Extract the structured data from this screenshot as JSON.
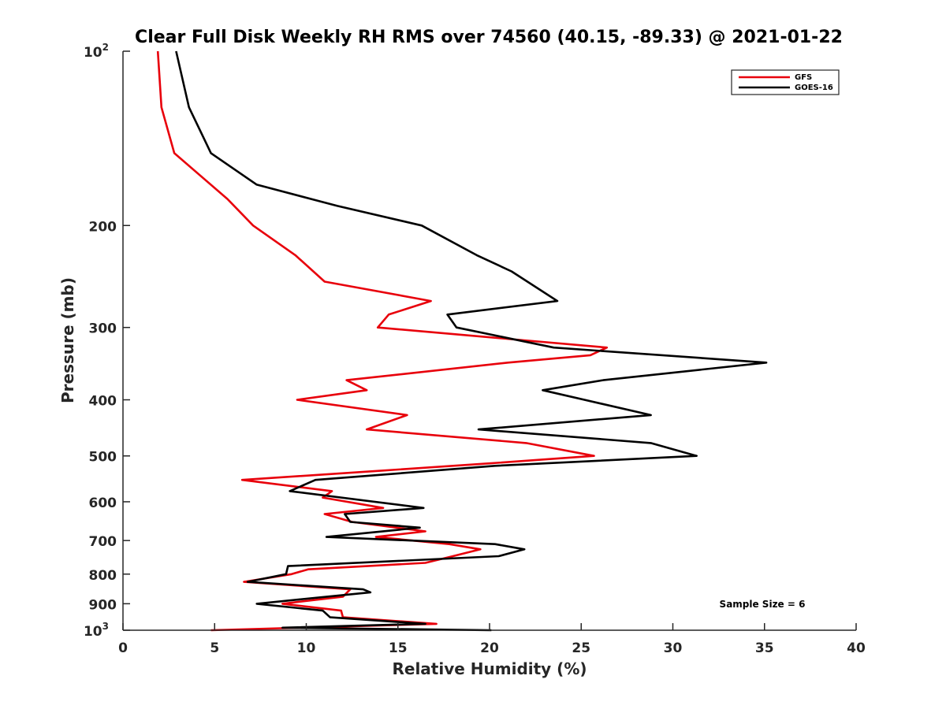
{
  "chart_data": {
    "type": "line",
    "title": "Clear Full Disk Weekly RH RMS over 74560 (40.15, -89.33) @ 2021-01-22",
    "xlabel": "Relative Humidity (%)",
    "ylabel": "Pressure (mb)",
    "xlim": [
      0,
      40
    ],
    "ylim": [
      100,
      1000
    ],
    "y_scale": "log",
    "y_reversed": true,
    "grid": false,
    "x_ticks": [
      {
        "value": 0,
        "label": "0"
      },
      {
        "value": 5,
        "label": "5"
      },
      {
        "value": 10,
        "label": "10"
      },
      {
        "value": 15,
        "label": "15"
      },
      {
        "value": 20,
        "label": "20"
      },
      {
        "value": 25,
        "label": "25"
      },
      {
        "value": 30,
        "label": "30"
      },
      {
        "value": 35,
        "label": "35"
      },
      {
        "value": 40,
        "label": "40"
      }
    ],
    "y_ticks": [
      {
        "value": 100,
        "base": "10",
        "exp": "2"
      },
      {
        "value": 200,
        "base": "200",
        "exp": ""
      },
      {
        "value": 300,
        "base": "300",
        "exp": ""
      },
      {
        "value": 400,
        "base": "400",
        "exp": ""
      },
      {
        "value": 500,
        "base": "500",
        "exp": ""
      },
      {
        "value": 600,
        "base": "600",
        "exp": ""
      },
      {
        "value": 700,
        "base": "700",
        "exp": ""
      },
      {
        "value": 800,
        "base": "800",
        "exp": ""
      },
      {
        "value": 900,
        "base": "900",
        "exp": ""
      },
      {
        "value": 1000,
        "base": "10",
        "exp": "3"
      }
    ],
    "legend": {
      "placement": "top-right"
    },
    "annotation": "Sample Size = 6",
    "series": [
      {
        "name": "GFS",
        "color": "#e8000b",
        "points": [
          [
            1.9,
            100
          ],
          [
            2.1,
            125
          ],
          [
            2.8,
            150
          ],
          [
            5.7,
            180
          ],
          [
            7.1,
            200
          ],
          [
            9.4,
            225
          ],
          [
            11.0,
            250
          ],
          [
            16.8,
            270
          ],
          [
            14.5,
            285
          ],
          [
            13.9,
            300
          ],
          [
            26.4,
            325
          ],
          [
            25.5,
            335
          ],
          [
            21.0,
            345
          ],
          [
            12.2,
            370
          ],
          [
            13.3,
            385
          ],
          [
            9.5,
            400
          ],
          [
            15.5,
            425
          ],
          [
            13.3,
            450
          ],
          [
            22.0,
            475
          ],
          [
            25.7,
            500
          ],
          [
            20.0,
            515
          ],
          [
            14.2,
            530
          ],
          [
            6.5,
            550
          ],
          [
            11.4,
            575
          ],
          [
            10.9,
            590
          ],
          [
            14.2,
            615
          ],
          [
            11.0,
            630
          ],
          [
            12.5,
            650
          ],
          [
            16.5,
            675
          ],
          [
            13.8,
            690
          ],
          [
            17.8,
            710
          ],
          [
            19.5,
            725
          ],
          [
            18.0,
            745
          ],
          [
            16.5,
            765
          ],
          [
            10.1,
            785
          ],
          [
            9.2,
            800
          ],
          [
            6.6,
            825
          ],
          [
            12.4,
            850
          ],
          [
            12.0,
            875
          ],
          [
            8.7,
            900
          ],
          [
            11.9,
            925
          ],
          [
            12.0,
            950
          ],
          [
            17.1,
            975
          ],
          [
            4.8,
            1000
          ]
        ]
      },
      {
        "name": "GOES-16",
        "color": "#000000",
        "points": [
          [
            2.9,
            100
          ],
          [
            3.6,
            125
          ],
          [
            4.8,
            150
          ],
          [
            7.3,
            170
          ],
          [
            11.7,
            185
          ],
          [
            16.3,
            200
          ],
          [
            19.3,
            225
          ],
          [
            21.2,
            240
          ],
          [
            23.7,
            270
          ],
          [
            17.7,
            285
          ],
          [
            18.2,
            300
          ],
          [
            23.5,
            325
          ],
          [
            35.1,
            345
          ],
          [
            26.2,
            370
          ],
          [
            22.9,
            385
          ],
          [
            28.8,
            425
          ],
          [
            19.4,
            450
          ],
          [
            28.8,
            475
          ],
          [
            31.3,
            500
          ],
          [
            20.3,
            520
          ],
          [
            10.5,
            550
          ],
          [
            9.1,
            575
          ],
          [
            16.4,
            615
          ],
          [
            12.1,
            630
          ],
          [
            12.4,
            650
          ],
          [
            16.2,
            665
          ],
          [
            11.1,
            690
          ],
          [
            20.3,
            710
          ],
          [
            21.9,
            725
          ],
          [
            20.5,
            745
          ],
          [
            9.0,
            775
          ],
          [
            8.9,
            800
          ],
          [
            6.8,
            825
          ],
          [
            13.1,
            850
          ],
          [
            13.5,
            860
          ],
          [
            7.3,
            900
          ],
          [
            10.9,
            925
          ],
          [
            11.3,
            950
          ],
          [
            16.5,
            975
          ],
          [
            8.7,
            990
          ],
          [
            20.1,
            1000
          ]
        ]
      }
    ]
  }
}
